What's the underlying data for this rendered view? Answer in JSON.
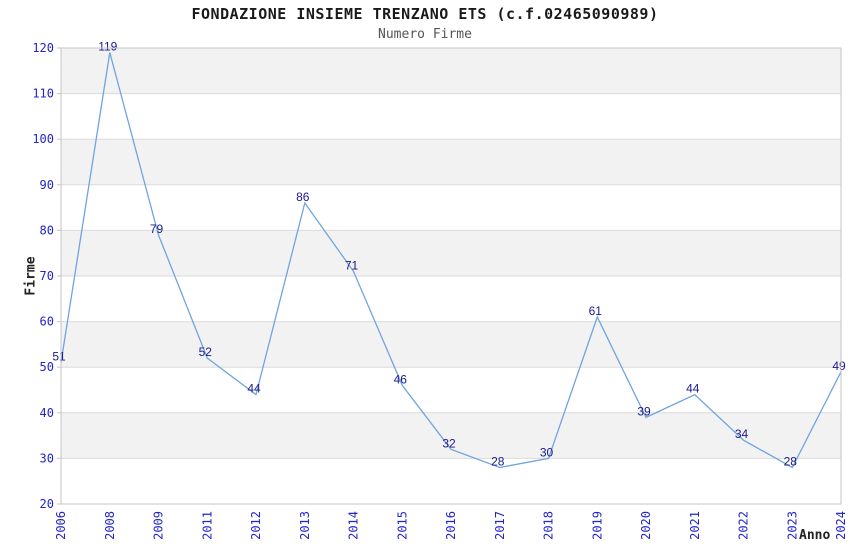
{
  "chart_data": {
    "type": "line",
    "title": "FONDAZIONE INSIEME TRENZANO ETS (c.f.02465090989)",
    "subtitle": "Numero Firme",
    "xlabel": "Anno",
    "ylabel": "Firme",
    "categories": [
      "2006",
      "2008",
      "2009",
      "2011",
      "2012",
      "2013",
      "2014",
      "2015",
      "2016",
      "2017",
      "2018",
      "2019",
      "2020",
      "2021",
      "2022",
      "2023",
      "2024"
    ],
    "values": [
      51,
      119,
      79,
      52,
      44,
      86,
      71,
      46,
      32,
      28,
      30,
      61,
      39,
      44,
      34,
      28,
      49
    ],
    "ylim": [
      20,
      120
    ],
    "ytick_step": 10,
    "grid": "horizontal-bands",
    "legend": "none",
    "data_labels": "shown-above-points",
    "colors": {
      "line": "#6FA4E0",
      "data_label": "#1A1A8C",
      "tick_label": "#2424CC",
      "band": "#F2F2F2",
      "gridline": "#DBDBDB",
      "border": "#C6C6C6",
      "title": "#1A1A1A",
      "subtitle": "#555555",
      "axis_title": "#222222",
      "background": "#FFFFFF"
    }
  }
}
